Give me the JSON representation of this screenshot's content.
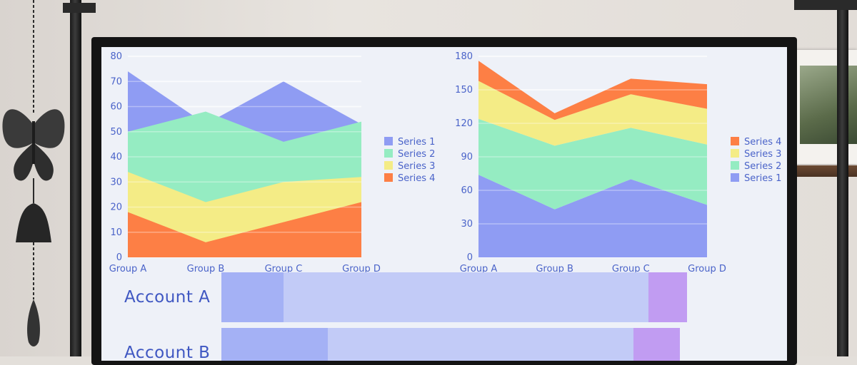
{
  "colors": {
    "series1": "#8f9cf3",
    "series2": "#95ecc2",
    "series3": "#f4ec86",
    "series4": "#fd7f45",
    "axis_text": "#4a63c9",
    "bar_light": "#c2cbf7",
    "bar_mid": "#a4b1f5",
    "bar_end": "#c19cf2"
  },
  "chart_data": [
    {
      "type": "area",
      "categories": [
        "Group A",
        "Group B",
        "Group C",
        "Group D"
      ],
      "ylim": [
        0,
        80
      ],
      "yticks": [
        "0",
        "10",
        "20",
        "30",
        "40",
        "50",
        "60",
        "70",
        "80"
      ],
      "grid": true,
      "legend_position": "right",
      "stacked": false,
      "series": [
        {
          "name": "Series 1",
          "values": [
            74,
            53,
            70,
            53
          ]
        },
        {
          "name": "Series 2",
          "values": [
            50,
            58,
            46,
            54
          ]
        },
        {
          "name": "Series 3",
          "values": [
            34,
            22,
            30,
            32
          ]
        },
        {
          "name": "Series 4",
          "values": [
            18,
            6,
            14,
            22
          ]
        }
      ]
    },
    {
      "type": "area",
      "categories": [
        "Group A",
        "Group B",
        "Group C",
        "Group D"
      ],
      "ylim": [
        0,
        180
      ],
      "yticks": [
        "0",
        "30",
        "60",
        "90",
        "120",
        "150",
        "180"
      ],
      "grid": true,
      "legend_position": "right",
      "stacked": true,
      "legend_order": [
        "Series 4",
        "Series 3",
        "Series 2",
        "Series 1"
      ],
      "series": [
        {
          "name": "Series 1",
          "values": [
            74,
            43,
            70,
            47
          ]
        },
        {
          "name": "Series 2",
          "values": [
            50,
            57,
            46,
            54
          ]
        },
        {
          "name": "Series 3",
          "values": [
            34,
            23,
            30,
            32
          ]
        },
        {
          "name": "Series 4",
          "values": [
            18,
            6,
            14,
            22
          ]
        }
      ]
    }
  ],
  "accounts": [
    {
      "label": "Account A",
      "segments": [
        0.134,
        0.783,
        0.083
      ]
    },
    {
      "label": "Account B",
      "segments": [
        0.232,
        0.667,
        0.101
      ]
    }
  ]
}
